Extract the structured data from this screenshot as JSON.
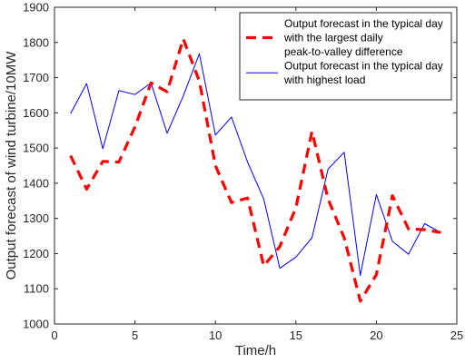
{
  "chart_data": {
    "type": "line",
    "title": "",
    "xlabel": "Time/h",
    "ylabel": "Output forecast of wind turbine/10MW",
    "xlim": [
      0,
      25
    ],
    "ylim": [
      1000,
      1900
    ],
    "xticks": [
      0,
      5,
      10,
      15,
      20,
      25
    ],
    "yticks": [
      1000,
      1100,
      1200,
      1300,
      1400,
      1500,
      1600,
      1700,
      1800,
      1900
    ],
    "grid": false,
    "legend_position": "top-right",
    "x": [
      1,
      2,
      3,
      4,
      5,
      6,
      7,
      8,
      9,
      10,
      11,
      12,
      13,
      14,
      15,
      16,
      17,
      18,
      19,
      20,
      21,
      22,
      23,
      24
    ],
    "series": [
      {
        "name": "Output forecast in the typical day with the largest daily peak-to-valley difference",
        "legend_lines": [
          "Output forecast in the typical day",
          " with the largest daily",
          "peak-to-valley difference"
        ],
        "color": "#ff0000",
        "style": "dashed",
        "values": [
          1478,
          1383,
          1462,
          1460,
          1560,
          1685,
          1660,
          1810,
          1690,
          1450,
          1345,
          1358,
          1165,
          1220,
          1330,
          1547,
          1355,
          1245,
          1065,
          1140,
          1365,
          1270,
          1268,
          1260
        ]
      },
      {
        "name": "Output forecast in the typical day with highest load",
        "legend_lines": [
          "Output forecast in the typical day",
          "with highest load"
        ],
        "color": "#0000ff",
        "style": "solid",
        "values": [
          1598,
          1683,
          1498,
          1663,
          1652,
          1685,
          1542,
          1648,
          1768,
          1537,
          1588,
          1460,
          1355,
          1158,
          1190,
          1245,
          1440,
          1488,
          1138,
          1368,
          1235,
          1198,
          1285,
          1260
        ]
      }
    ]
  }
}
